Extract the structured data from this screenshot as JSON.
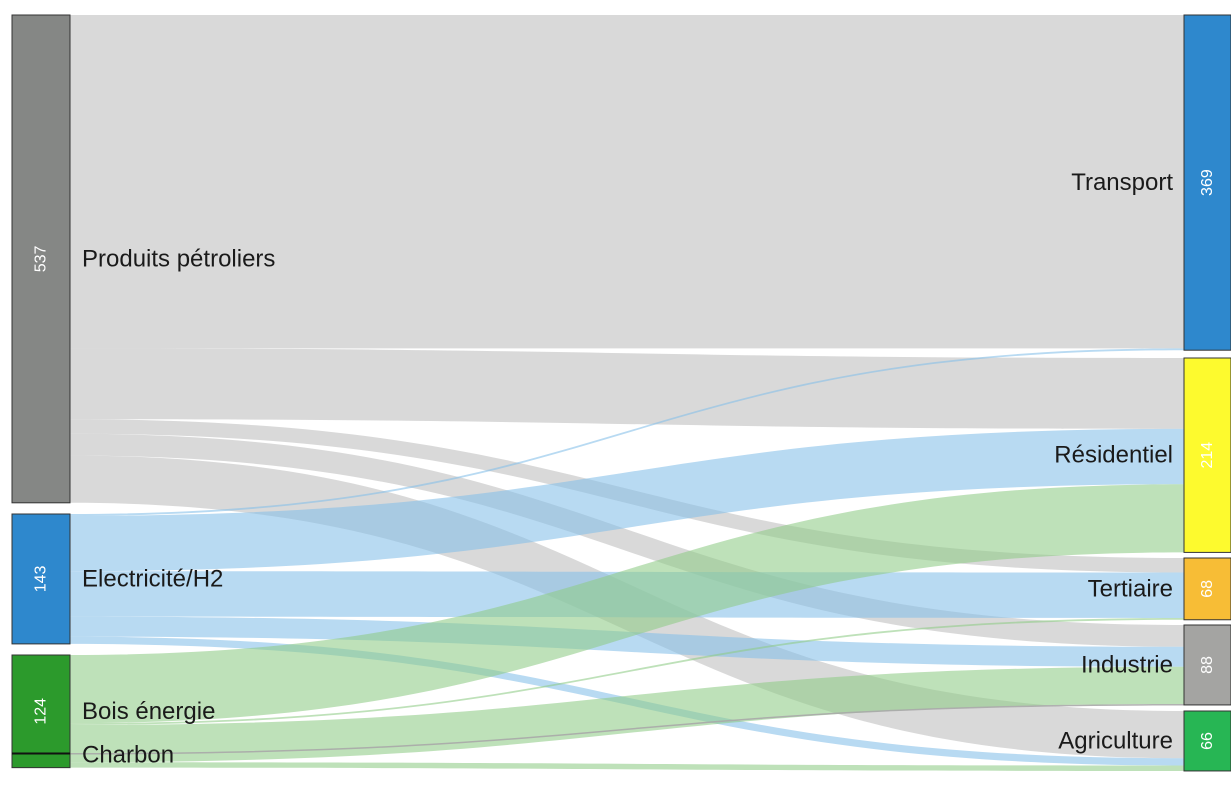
{
  "chart_data": {
    "type": "sankey",
    "sources": [
      {
        "id": "petrole",
        "label": "Produits pétroliers",
        "value": 537,
        "color": "#858785",
        "show_value": true
      },
      {
        "id": "elec",
        "label": "Electricité/H2",
        "value": 143,
        "color": "#2e88cd",
        "show_value": true
      },
      {
        "id": "bois",
        "label": "Bois énergie",
        "value": 124,
        "color": "#2c9a2c",
        "show_value": true
      },
      {
        "id": "charbon",
        "label": "Charbon",
        "value": 1,
        "color": "#111111",
        "show_value": false
      }
    ],
    "targets": [
      {
        "id": "transport",
        "label": "Transport",
        "value": 369,
        "color": "#2e88cd"
      },
      {
        "id": "residentiel",
        "label": "Résidentiel",
        "value": 214,
        "color": "#fdfa2e"
      },
      {
        "id": "tertiaire",
        "label": "Tertiaire",
        "value": 68,
        "color": "#f7bd36"
      },
      {
        "id": "industrie",
        "label": "Industrie",
        "value": 88,
        "color": "#a4a4a2"
      },
      {
        "id": "agriculture",
        "label": "Agriculture",
        "value": 66,
        "color": "#27b654"
      }
    ],
    "flows": [
      {
        "source": "petrole",
        "target": "transport",
        "value": 367
      },
      {
        "source": "petrole",
        "target": "residentiel",
        "value": 78
      },
      {
        "source": "petrole",
        "target": "tertiaire",
        "value": 16
      },
      {
        "source": "petrole",
        "target": "industrie",
        "value": 24
      },
      {
        "source": "petrole",
        "target": "agriculture",
        "value": 52
      },
      {
        "source": "elec",
        "target": "transport",
        "value": 2
      },
      {
        "source": "elec",
        "target": "residentiel",
        "value": 61
      },
      {
        "source": "elec",
        "target": "tertiaire",
        "value": 50
      },
      {
        "source": "elec",
        "target": "industrie",
        "value": 22
      },
      {
        "source": "elec",
        "target": "agriculture",
        "value": 8
      },
      {
        "source": "bois",
        "target": "residentiel",
        "value": 75
      },
      {
        "source": "bois",
        "target": "tertiaire",
        "value": 2
      },
      {
        "source": "bois",
        "target": "industrie",
        "value": 41
      },
      {
        "source": "bois",
        "target": "agriculture",
        "value": 6
      },
      {
        "source": "charbon",
        "target": "industrie",
        "value": 1
      }
    ],
    "link_colors": {
      "petrole": "#bdbdbd",
      "elec": "#85bfe8",
      "bois": "#8fcc86",
      "charbon": "#a9a9a9"
    }
  }
}
